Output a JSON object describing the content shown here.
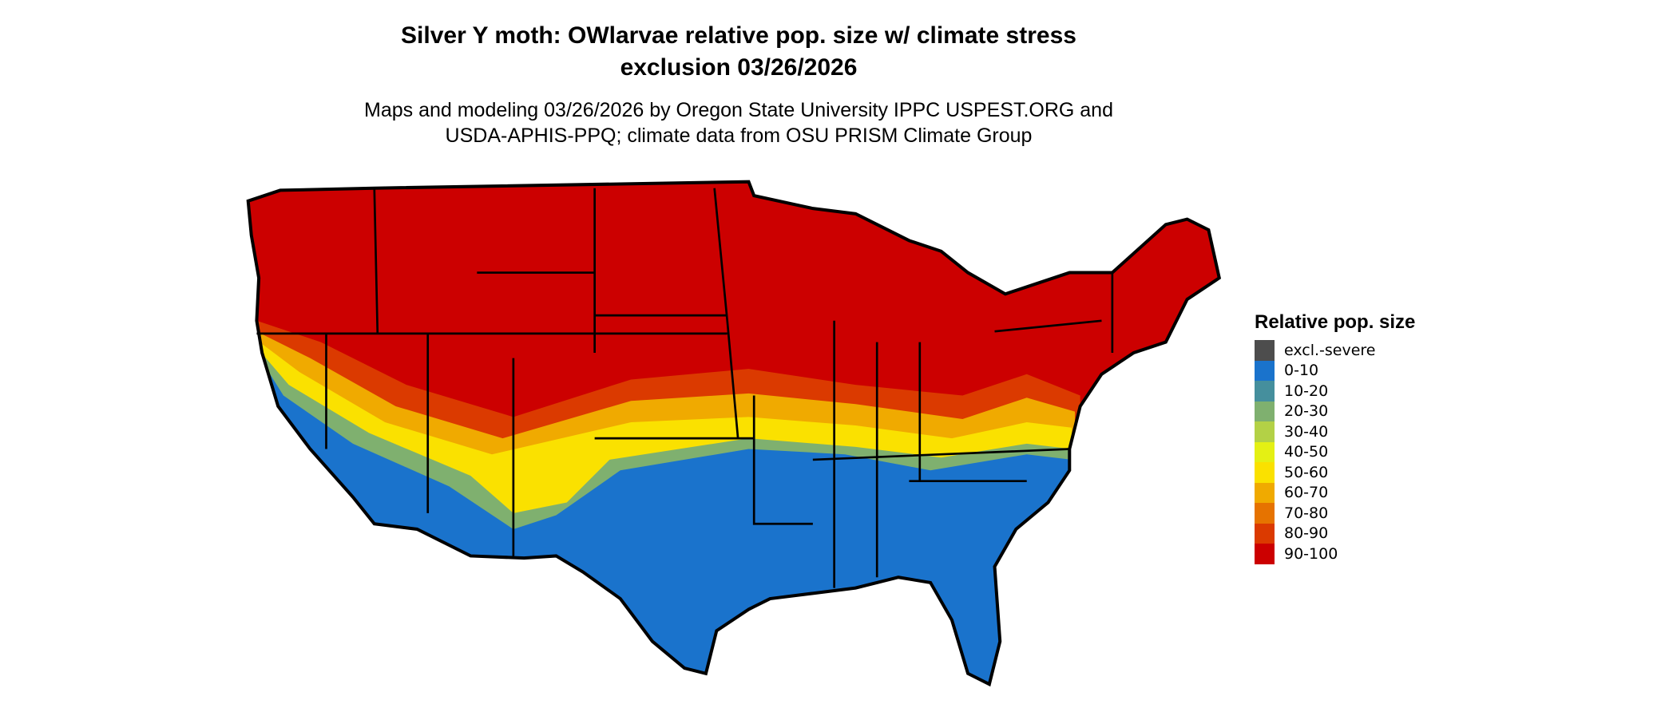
{
  "title_line1": "Silver Y moth: OWlarvae relative pop. size w/ climate stress",
  "title_line2": "exclusion 03/26/2026",
  "subtitle_line1": "Maps and modeling 03/26/2026 by Oregon State University IPPC USPEST.ORG and",
  "subtitle_line2": "USDA-APHIS-PPQ; climate data from OSU PRISM Climate Group",
  "legend": {
    "title": "Relative pop. size",
    "items": [
      {
        "label": "excl.-severe",
        "color": "#4d4d4d"
      },
      {
        "label": "0-10",
        "color": "#1a73cc"
      },
      {
        "label": "10-20",
        "color": "#458f9d"
      },
      {
        "label": "20-30",
        "color": "#7fb06f"
      },
      {
        "label": "30-40",
        "color": "#b3d146"
      },
      {
        "label": "40-50",
        "color": "#e4f014"
      },
      {
        "label": "50-60",
        "color": "#fae100"
      },
      {
        "label": "60-70",
        "color": "#f0aa00"
      },
      {
        "label": "70-80",
        "color": "#e67300"
      },
      {
        "label": "80-90",
        "color": "#db3a00"
      },
      {
        "label": "90-100",
        "color": "#cc0000"
      }
    ]
  }
}
